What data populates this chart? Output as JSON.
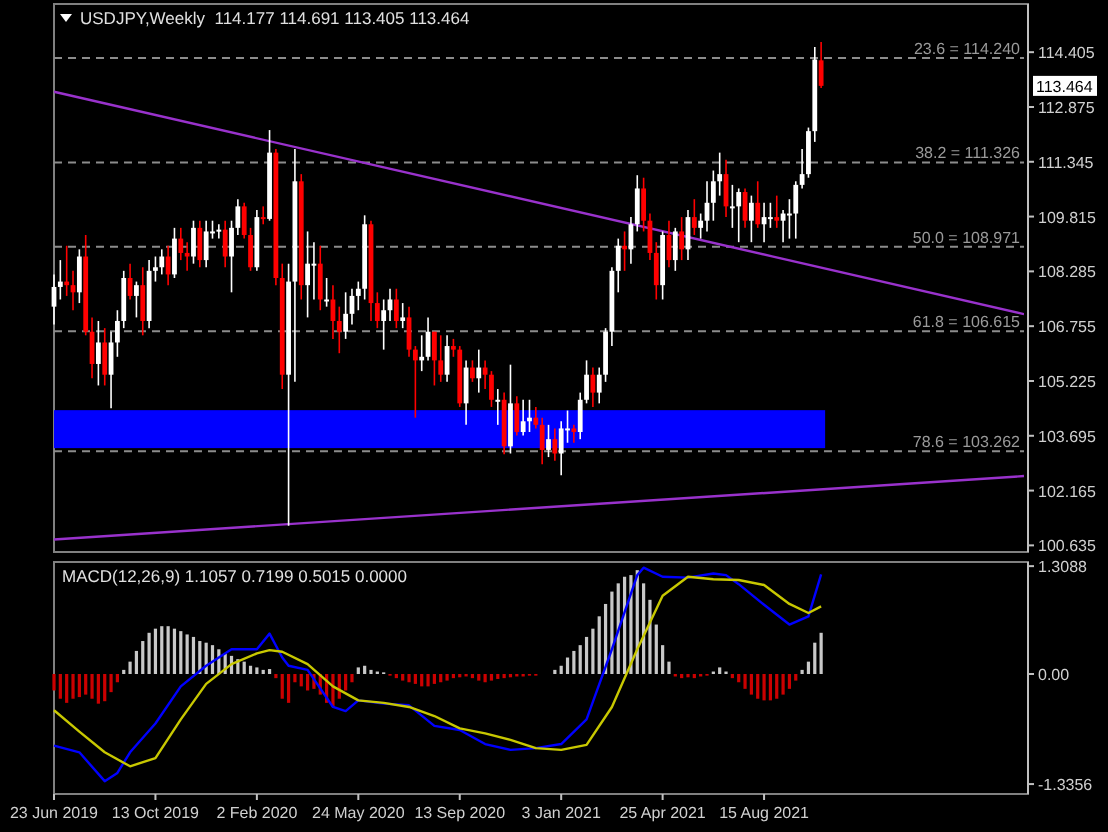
{
  "chart_data": [
    {
      "type": "candlestick",
      "title": "USDJPY,Weekly  114.177 114.691 113.405 113.464",
      "x": [
        "2019-06-23",
        "2019-06-30",
        "2019-07-07",
        "2019-07-14",
        "2019-07-21",
        "2019-07-28",
        "2019-08-04",
        "2019-08-11",
        "2019-08-18",
        "2019-08-25",
        "2019-09-01",
        "2019-09-08",
        "2019-09-15",
        "2019-09-22",
        "2019-09-29",
        "2019-10-06",
        "2019-10-13",
        "2019-10-20",
        "2019-10-27",
        "2019-11-03",
        "2019-11-10",
        "2019-11-17",
        "2019-11-24",
        "2019-12-01",
        "2019-12-08",
        "2019-12-15",
        "2019-12-22",
        "2019-12-29",
        "2020-01-05",
        "2020-01-12",
        "2020-01-19",
        "2020-01-26",
        "2020-02-02",
        "2020-02-09",
        "2020-02-16",
        "2020-02-23",
        "2020-03-01",
        "2020-03-08",
        "2020-03-15",
        "2020-03-22",
        "2020-03-29",
        "2020-04-05",
        "2020-04-12",
        "2020-04-19",
        "2020-04-26",
        "2020-05-03",
        "2020-05-10",
        "2020-05-17",
        "2020-05-24",
        "2020-05-31",
        "2020-06-07",
        "2020-06-14",
        "2020-06-21",
        "2020-06-28",
        "2020-07-05",
        "2020-07-12",
        "2020-07-19",
        "2020-07-26",
        "2020-08-02",
        "2020-08-09",
        "2020-08-16",
        "2020-08-23",
        "2020-08-30",
        "2020-09-06",
        "2020-09-13",
        "2020-09-20",
        "2020-09-27",
        "2020-10-04",
        "2020-10-11",
        "2020-10-18",
        "2020-10-25",
        "2020-11-01",
        "2020-11-08",
        "2020-11-15",
        "2020-11-22",
        "2020-11-29",
        "2020-12-06",
        "2020-12-13",
        "2020-12-20",
        "2020-12-27",
        "2021-01-03",
        "2021-01-10",
        "2021-01-17",
        "2021-01-24",
        "2021-01-31",
        "2021-02-07",
        "2021-02-14",
        "2021-02-21",
        "2021-02-28",
        "2021-03-07",
        "2021-03-14",
        "2021-03-21",
        "2021-03-28",
        "2021-04-04",
        "2021-04-11",
        "2021-04-18",
        "2021-04-25",
        "2021-05-02",
        "2021-05-09",
        "2021-05-16",
        "2021-05-23",
        "2021-05-30",
        "2021-06-06",
        "2021-06-13",
        "2021-06-20",
        "2021-06-27",
        "2021-07-04",
        "2021-07-11",
        "2021-07-18",
        "2021-07-25",
        "2021-08-01",
        "2021-08-08",
        "2021-08-15",
        "2021-08-22",
        "2021-08-29",
        "2021-09-05",
        "2021-09-12",
        "2021-09-19",
        "2021-09-26",
        "2021-10-03",
        "2021-10-10",
        "2021-10-17"
      ],
      "ohlc": [
        [
          107.3,
          108.2,
          106.8,
          107.85
        ],
        [
          107.85,
          108.6,
          107.5,
          108.0
        ],
        [
          108.0,
          109.0,
          107.6,
          107.9
        ],
        [
          107.9,
          108.3,
          107.2,
          107.7
        ],
        [
          107.7,
          108.9,
          107.4,
          108.7
        ],
        [
          108.7,
          109.3,
          106.5,
          106.6
        ],
        [
          106.6,
          107.0,
          105.3,
          105.7
        ],
        [
          105.7,
          106.9,
          105.1,
          106.3
        ],
        [
          106.3,
          106.7,
          105.1,
          105.4
        ],
        [
          105.4,
          106.6,
          104.46,
          106.3
        ],
        [
          106.3,
          107.2,
          105.9,
          106.9
        ],
        [
          106.9,
          108.3,
          106.7,
          108.1
        ],
        [
          108.1,
          108.5,
          107.5,
          107.6
        ],
        [
          107.6,
          108.0,
          107.0,
          107.9
        ],
        [
          107.9,
          108.4,
          106.5,
          106.9
        ],
        [
          106.9,
          108.6,
          106.7,
          108.3
        ],
        [
          108.3,
          108.7,
          108.0,
          108.4
        ],
        [
          108.4,
          108.9,
          108.2,
          108.7
        ],
        [
          108.7,
          109.0,
          107.9,
          108.2
        ],
        [
          108.2,
          109.5,
          108.1,
          109.2
        ],
        [
          109.2,
          109.5,
          108.6,
          108.8
        ],
        [
          108.8,
          109.1,
          108.3,
          108.7
        ],
        [
          108.7,
          109.7,
          108.5,
          109.5
        ],
        [
          109.5,
          109.7,
          108.4,
          108.6
        ],
        [
          108.6,
          109.7,
          108.4,
          109.4
        ],
        [
          109.4,
          109.7,
          109.2,
          109.4
        ],
        [
          109.4,
          109.6,
          109.2,
          109.45
        ],
        [
          109.45,
          109.7,
          108.4,
          108.7
        ],
        [
          108.7,
          109.7,
          107.7,
          109.5
        ],
        [
          109.5,
          110.3,
          109.3,
          110.1
        ],
        [
          110.1,
          110.2,
          109.2,
          109.3
        ],
        [
          109.3,
          109.5,
          108.3,
          108.4
        ],
        [
          108.4,
          110.0,
          108.3,
          109.8
        ],
        [
          109.8,
          110.1,
          109.6,
          109.75
        ],
        [
          109.75,
          112.23,
          109.7,
          111.6
        ],
        [
          111.6,
          111.7,
          107.9,
          108.1
        ],
        [
          108.1,
          108.5,
          105.0,
          105.4
        ],
        [
          105.4,
          108.5,
          101.18,
          108.0
        ],
        [
          108.0,
          111.7,
          105.2,
          110.8
        ],
        [
          110.8,
          111.0,
          107.5,
          107.9
        ],
        [
          107.9,
          109.4,
          107.0,
          108.5
        ],
        [
          108.5,
          109.1,
          107.5,
          108.5
        ],
        [
          108.5,
          109.0,
          107.2,
          107.5
        ],
        [
          107.5,
          108.1,
          107.3,
          107.5
        ],
        [
          107.5,
          107.9,
          106.4,
          106.9
        ],
        [
          106.9,
          107.3,
          106.0,
          106.6
        ],
        [
          106.6,
          107.7,
          106.4,
          107.1
        ],
        [
          107.1,
          107.8,
          106.8,
          107.6
        ],
        [
          107.6,
          108.0,
          107.2,
          107.8
        ],
        [
          107.8,
          109.85,
          107.5,
          109.6
        ],
        [
          109.6,
          109.7,
          106.9,
          107.4
        ],
        [
          107.4,
          107.7,
          106.7,
          106.9
        ],
        [
          106.9,
          107.5,
          106.1,
          107.2
        ],
        [
          107.2,
          107.8,
          106.9,
          107.5
        ],
        [
          107.5,
          107.8,
          106.7,
          106.9
        ],
        [
          106.9,
          107.4,
          106.7,
          107.0
        ],
        [
          107.0,
          107.3,
          105.9,
          106.1
        ],
        [
          106.1,
          106.2,
          104.2,
          105.8
        ],
        [
          105.8,
          106.5,
          105.5,
          105.9
        ],
        [
          105.9,
          107.0,
          105.8,
          106.6
        ],
        [
          106.6,
          106.6,
          105.1,
          105.8
        ],
        [
          105.8,
          106.5,
          105.2,
          105.4
        ],
        [
          105.4,
          106.5,
          105.2,
          106.2
        ],
        [
          106.2,
          106.4,
          105.9,
          106.1
        ],
        [
          106.1,
          106.2,
          104.5,
          104.6
        ],
        [
          104.6,
          105.8,
          104.0,
          105.6
        ],
        [
          105.6,
          105.8,
          105.2,
          105.3
        ],
        [
          105.3,
          106.1,
          104.9,
          105.6
        ],
        [
          105.6,
          105.8,
          105.0,
          105.4
        ],
        [
          105.4,
          105.5,
          104.5,
          104.7
        ],
        [
          104.7,
          105.0,
          104.0,
          104.7
        ],
        [
          104.7,
          104.9,
          103.18,
          103.4
        ],
        [
          103.4,
          105.68,
          103.2,
          104.6
        ],
        [
          104.6,
          104.8,
          103.7,
          103.8
        ],
        [
          103.8,
          104.7,
          103.7,
          104.1
        ],
        [
          104.1,
          104.7,
          103.8,
          104.2
        ],
        [
          104.2,
          104.5,
          103.9,
          104.0
        ],
        [
          104.0,
          104.2,
          102.9,
          103.3
        ],
        [
          103.3,
          104.0,
          103.1,
          103.6
        ],
        [
          103.6,
          103.9,
          103.0,
          103.2
        ],
        [
          103.2,
          104.1,
          102.59,
          103.9
        ],
        [
          103.9,
          104.4,
          103.5,
          103.9
        ],
        [
          103.9,
          104.0,
          103.5,
          103.8
        ],
        [
          103.8,
          104.9,
          103.6,
          104.7
        ],
        [
          104.7,
          105.8,
          104.6,
          105.4
        ],
        [
          105.4,
          105.6,
          104.5,
          104.9
        ],
        [
          104.9,
          105.6,
          104.6,
          105.4
        ],
        [
          105.4,
          106.7,
          105.2,
          106.6
        ],
        [
          106.6,
          108.4,
          106.2,
          108.3
        ],
        [
          108.3,
          109.2,
          107.7,
          109.0
        ],
        [
          109.0,
          109.4,
          108.3,
          108.9
        ],
        [
          108.9,
          109.8,
          108.5,
          109.6
        ],
        [
          109.6,
          110.97,
          109.4,
          110.6
        ],
        [
          110.6,
          110.9,
          109.4,
          109.7
        ],
        [
          109.7,
          109.9,
          108.6,
          108.8
        ],
        [
          108.8,
          109.1,
          107.5,
          107.9
        ],
        [
          107.9,
          109.4,
          107.5,
          109.3
        ],
        [
          109.3,
          109.7,
          108.4,
          108.6
        ],
        [
          108.6,
          109.5,
          108.3,
          109.4
        ],
        [
          109.4,
          109.8,
          108.6,
          108.9
        ],
        [
          108.9,
          110.0,
          108.6,
          109.8
        ],
        [
          109.8,
          110.3,
          109.3,
          109.5
        ],
        [
          109.5,
          109.9,
          109.2,
          109.7
        ],
        [
          109.7,
          110.8,
          109.4,
          110.2
        ],
        [
          110.2,
          111.1,
          109.7,
          110.8
        ],
        [
          110.8,
          111.6,
          110.4,
          111.0
        ],
        [
          111.0,
          111.4,
          109.8,
          110.1
        ],
        [
          110.1,
          110.7,
          109.5,
          110.1
        ],
        [
          110.1,
          110.6,
          109.1,
          110.5
        ],
        [
          110.5,
          110.6,
          109.5,
          109.7
        ],
        [
          109.7,
          110.4,
          109.1,
          110.2
        ],
        [
          110.2,
          110.8,
          109.5,
          109.6
        ],
        [
          109.6,
          110.2,
          109.1,
          109.8
        ],
        [
          109.8,
          110.2,
          109.5,
          109.8
        ],
        [
          109.8,
          110.4,
          109.5,
          109.7
        ],
        [
          109.7,
          110.0,
          109.1,
          109.9
        ],
        [
          109.9,
          110.3,
          109.2,
          109.9
        ],
        [
          109.9,
          110.8,
          109.2,
          110.7
        ],
        [
          110.7,
          111.7,
          110.6,
          111.0
        ],
        [
          111.0,
          112.3,
          110.9,
          112.2
        ],
        [
          112.2,
          114.55,
          111.9,
          114.2
        ],
        [
          114.177,
          114.691,
          113.405,
          113.464
        ]
      ],
      "xlim": [
        "2019-06-23",
        "2022-05-29"
      ],
      "ylim": [
        100.45,
        115.75
      ],
      "yticks": [
        114.405,
        112.875,
        111.345,
        109.815,
        108.285,
        106.755,
        105.225,
        103.695,
        102.165,
        100.635
      ],
      "tick_labels": "y",
      "series": [
        {
          "type": "line",
          "color": "#9932cc",
          "x": [
            "2019-06-23",
            "2022-05-29"
          ],
          "values": [
            113.3,
            107.09
          ]
        },
        {
          "type": "line",
          "color": "#9932cc",
          "x": [
            "2019-06-23",
            "2022-05-29"
          ],
          "values": [
            100.8,
            102.57
          ]
        }
      ],
      "bands": [
        {
          "axis": "y",
          "from": 103.35,
          "to": 104.41,
          "color": "#0000ff"
        }
      ],
      "ref_lines": [
        {
          "axis": "y",
          "value": 114.24,
          "label": "23.6 = 114.240",
          "line_style": "dashed"
        },
        {
          "axis": "y",
          "value": 111.326,
          "label": "38.2 = 111.326",
          "line_style": "dashed"
        },
        {
          "axis": "y",
          "value": 108.971,
          "label": "50.0 = 108.971",
          "line_style": "dashed"
        },
        {
          "axis": "y",
          "value": 106.615,
          "label": "61.8 = 106.615",
          "line_style": "dashed"
        },
        {
          "axis": "y",
          "value": 103.262,
          "label": "78.6 = 103.262",
          "line_style": "dashed"
        }
      ],
      "annotations": [
        "113.464"
      ]
    },
    {
      "type": "bar",
      "title": "MACD(12,26,9) 1.1057 0.7199 0.5015 0.0000",
      "x": [
        "2019-06-23",
        "2019-06-30",
        "2019-07-07",
        "2019-07-14",
        "2019-07-21",
        "2019-07-28",
        "2019-08-04",
        "2019-08-11",
        "2019-08-18",
        "2019-08-25",
        "2019-09-01",
        "2019-09-08",
        "2019-09-15",
        "2019-09-22",
        "2019-09-29",
        "2019-10-06",
        "2019-10-13",
        "2019-10-20",
        "2019-10-27",
        "2019-11-03",
        "2019-11-10",
        "2019-11-17",
        "2019-11-24",
        "2019-12-01",
        "2019-12-08",
        "2019-12-15",
        "2019-12-22",
        "2019-12-29",
        "2020-01-05",
        "2020-01-12",
        "2020-01-19",
        "2020-01-26",
        "2020-02-02",
        "2020-02-09",
        "2020-02-16",
        "2020-02-23",
        "2020-03-01",
        "2020-03-08",
        "2020-03-15",
        "2020-03-22",
        "2020-03-29",
        "2020-04-05",
        "2020-04-12",
        "2020-04-19",
        "2020-04-26",
        "2020-05-03",
        "2020-05-10",
        "2020-05-17",
        "2020-05-24",
        "2020-05-31",
        "2020-06-07",
        "2020-06-14",
        "2020-06-21",
        "2020-06-28",
        "2020-07-05",
        "2020-07-12",
        "2020-07-19",
        "2020-07-26",
        "2020-08-02",
        "2020-08-09",
        "2020-08-16",
        "2020-08-23",
        "2020-08-30",
        "2020-09-06",
        "2020-09-13",
        "2020-09-20",
        "2020-09-27",
        "2020-10-04",
        "2020-10-11",
        "2020-10-18",
        "2020-10-25",
        "2020-11-01",
        "2020-11-08",
        "2020-11-15",
        "2020-11-22",
        "2020-11-29",
        "2020-12-06",
        "2020-12-13",
        "2020-12-20",
        "2020-12-27",
        "2021-01-03",
        "2021-01-10",
        "2021-01-17",
        "2021-01-24",
        "2021-01-31",
        "2021-02-07",
        "2021-02-14",
        "2021-02-21",
        "2021-02-28",
        "2021-03-07",
        "2021-03-14",
        "2021-03-21",
        "2021-03-28",
        "2021-04-04",
        "2021-04-11",
        "2021-04-18",
        "2021-04-25",
        "2021-05-02",
        "2021-05-09",
        "2021-05-16",
        "2021-05-23",
        "2021-05-30",
        "2021-06-06",
        "2021-06-13",
        "2021-06-20",
        "2021-06-27",
        "2021-07-04",
        "2021-07-11",
        "2021-07-18",
        "2021-07-25",
        "2021-08-01",
        "2021-08-08",
        "2021-08-15",
        "2021-08-22",
        "2021-08-29",
        "2021-09-05",
        "2021-09-12",
        "2021-09-19",
        "2021-09-26",
        "2021-10-03",
        "2021-10-10",
        "2021-10-17"
      ],
      "series": [
        {
          "values": [
            -0.2,
            -0.3,
            -0.35,
            -0.3,
            -0.28,
            -0.25,
            -0.3,
            -0.36,
            -0.33,
            -0.22,
            -0.1,
            0.05,
            0.15,
            0.28,
            0.4,
            0.5,
            0.55,
            0.58,
            0.58,
            0.55,
            0.52,
            0.48,
            0.45,
            0.4,
            0.38,
            0.35,
            0.3,
            0.25,
            0.22,
            0.18,
            0.15,
            0.1,
            0.08,
            0.05,
            0.06,
            -0.05,
            -0.3,
            -0.35,
            -0.1,
            -0.15,
            -0.2,
            -0.18,
            -0.25,
            -0.35,
            -0.4,
            -0.3,
            -0.2,
            -0.1,
            0.08,
            0.1,
            0.05,
            0.03,
            0.02,
            -0.02,
            -0.05,
            -0.08,
            -0.1,
            -0.12,
            -0.15,
            -0.15,
            -0.12,
            -0.1,
            -0.08,
            -0.05,
            -0.04,
            -0.03,
            -0.05,
            -0.08,
            -0.1,
            -0.08,
            -0.06,
            -0.05,
            -0.04,
            -0.03,
            -0.03,
            -0.02,
            -0.02,
            null,
            null,
            0.05,
            0.1,
            0.2,
            0.28,
            0.35,
            0.45,
            0.55,
            0.7,
            0.85,
            1.0,
            1.1,
            1.18,
            1.2,
            1.26,
            1.1,
            0.9,
            0.6,
            0.35,
            0.15,
            -0.03,
            -0.05,
            -0.04,
            -0.05,
            -0.03,
            -0.02,
            0.03,
            0.08,
            0.03,
            -0.05,
            -0.1,
            -0.18,
            -0.25,
            -0.3,
            -0.32,
            -0.32,
            -0.3,
            -0.25,
            -0.18,
            -0.08,
            0.05,
            0.15,
            0.38,
            0.5
          ],
          "colors": [
            "#cc0000",
            "#cc0000",
            "#cc0000",
            "#cc0000",
            "#cc0000",
            "#cc0000",
            "#cc0000",
            "#cc0000",
            "#cc0000",
            "#cc0000",
            "#cc0000",
            "#c8c8c8",
            "#c8c8c8",
            "#c8c8c8",
            "#c8c8c8",
            "#c8c8c8",
            "#c8c8c8",
            "#c8c8c8",
            "#c8c8c8",
            "#c8c8c8",
            "#c8c8c8",
            "#c8c8c8",
            "#c8c8c8",
            "#c8c8c8",
            "#c8c8c8",
            "#c8c8c8",
            "#c8c8c8",
            "#c8c8c8",
            "#c8c8c8",
            "#c8c8c8",
            "#c8c8c8",
            "#c8c8c8",
            "#c8c8c8",
            "#c8c8c8",
            "#c8c8c8",
            "#cc0000",
            "#cc0000",
            "#cc0000",
            "#cc0000",
            "#cc0000",
            "#cc0000",
            "#cc0000",
            "#cc0000",
            "#cc0000",
            "#cc0000",
            "#cc0000",
            "#cc0000",
            "#cc0000",
            "#c8c8c8",
            "#c8c8c8",
            "#c8c8c8",
            "#c8c8c8",
            "#c8c8c8",
            "#cc0000",
            "#cc0000",
            "#cc0000",
            "#cc0000",
            "#cc0000",
            "#cc0000",
            "#cc0000",
            "#cc0000",
            "#cc0000",
            "#cc0000",
            "#cc0000",
            "#cc0000",
            "#cc0000",
            "#cc0000",
            "#cc0000",
            "#cc0000",
            "#cc0000",
            "#cc0000",
            "#cc0000",
            "#cc0000",
            "#cc0000",
            "#cc0000",
            "#cc0000",
            "#cc0000",
            null,
            null,
            "#c8c8c8",
            "#c8c8c8",
            "#c8c8c8",
            "#c8c8c8",
            "#c8c8c8",
            "#c8c8c8",
            "#c8c8c8",
            "#c8c8c8",
            "#c8c8c8",
            "#c8c8c8",
            "#c8c8c8",
            "#c8c8c8",
            "#c8c8c8",
            "#c8c8c8",
            "#c8c8c8",
            "#c8c8c8",
            "#c8c8c8",
            "#c8c8c8",
            "#c8c8c8",
            "#cc0000",
            "#cc0000",
            "#cc0000",
            "#cc0000",
            "#cc0000",
            "#cc0000",
            "#c8c8c8",
            "#c8c8c8",
            "#c8c8c8",
            "#cc0000",
            "#cc0000",
            "#cc0000",
            "#cc0000",
            "#cc0000",
            "#cc0000",
            "#cc0000",
            "#cc0000",
            "#cc0000",
            "#cc0000",
            "#cc0000",
            "#c8c8c8",
            "#c8c8c8",
            "#c8c8c8",
            "#c8c8c8"
          ]
        },
        {
          "type": "line",
          "color": "#0000ff",
          "x": [
            "2019-06-23",
            "2019-07-21",
            "2019-08-18",
            "2019-09-01",
            "2019-09-15",
            "2019-10-13",
            "2019-11-10",
            "2019-12-08",
            "2020-01-05",
            "2020-02-02",
            "2020-02-16",
            "2020-03-01",
            "2020-03-08",
            "2020-03-29",
            "2020-04-26",
            "2020-05-10",
            "2020-05-24",
            "2020-06-21",
            "2020-07-19",
            "2020-08-16",
            "2020-09-13",
            "2020-10-11",
            "2020-11-08",
            "2020-12-06",
            "2021-01-03",
            "2021-01-31",
            "2021-02-28",
            "2021-03-28",
            "2021-04-04",
            "2021-04-25",
            "2021-05-23",
            "2021-06-20",
            "2021-07-04",
            "2021-07-18",
            "2021-08-15",
            "2021-09-12",
            "2021-10-03",
            "2021-10-17"
          ],
          "values": [
            -0.87,
            -0.95,
            -1.3,
            -1.2,
            -0.95,
            -0.6,
            -0.15,
            0.1,
            0.3,
            0.3,
            0.49,
            0.2,
            0.1,
            0.05,
            -0.4,
            -0.45,
            -0.32,
            -0.36,
            -0.38,
            -0.63,
            -0.68,
            -0.85,
            -0.92,
            -0.9,
            -0.85,
            -0.55,
            0.3,
            1.2,
            1.29,
            1.18,
            1.17,
            1.22,
            1.2,
            1.09,
            0.84,
            0.6,
            0.7,
            1.21
          ]
        },
        {
          "type": "line",
          "color": "#c8c800",
          "x": [
            "2019-06-23",
            "2019-07-21",
            "2019-08-18",
            "2019-09-15",
            "2019-10-13",
            "2019-11-10",
            "2019-12-08",
            "2020-01-05",
            "2020-02-02",
            "2020-02-16",
            "2020-03-01",
            "2020-03-29",
            "2020-04-26",
            "2020-05-24",
            "2020-06-21",
            "2020-07-19",
            "2020-08-16",
            "2020-09-13",
            "2020-10-11",
            "2020-11-08",
            "2020-12-06",
            "2021-01-03",
            "2021-01-31",
            "2021-02-28",
            "2021-03-28",
            "2021-04-25",
            "2021-05-23",
            "2021-06-20",
            "2021-07-18",
            "2021-08-15",
            "2021-09-12",
            "2021-10-03",
            "2021-10-17"
          ],
          "values": [
            -0.44,
            -0.7,
            -0.95,
            -1.12,
            -1.02,
            -0.55,
            -0.12,
            0.12,
            0.25,
            0.29,
            0.27,
            0.12,
            -0.15,
            -0.32,
            -0.35,
            -0.4,
            -0.51,
            -0.66,
            -0.72,
            -0.8,
            -0.9,
            -0.92,
            -0.86,
            -0.4,
            0.3,
            0.95,
            1.18,
            1.15,
            1.14,
            1.08,
            0.85,
            0.74,
            0.82
          ]
        }
      ],
      "xlim": [
        "2019-06-23",
        "2022-05-29"
      ],
      "xticks": [
        {
          "value": "2019-06-23",
          "label": "23 Jun 2019"
        },
        {
          "value": "2019-10-13",
          "label": "13 Oct 2019"
        },
        {
          "value": "2020-02-02",
          "label": "2 Feb 2020"
        },
        {
          "value": "2020-05-24",
          "label": "24 May 2020"
        },
        {
          "value": "2020-09-13",
          "label": "13 Sep 2020"
        },
        {
          "value": "2021-01-03",
          "label": "3 Jan 2021"
        },
        {
          "value": "2021-04-25",
          "label": "25 Apr 2021"
        },
        {
          "value": "2021-08-15",
          "label": "15 Aug 2021"
        }
      ],
      "ylim": [
        -1.456,
        1.359
      ],
      "yticks": [
        1.3088,
        {
          "value": 0,
          "label": "0.00"
        },
        -1.3356
      ]
    }
  ]
}
